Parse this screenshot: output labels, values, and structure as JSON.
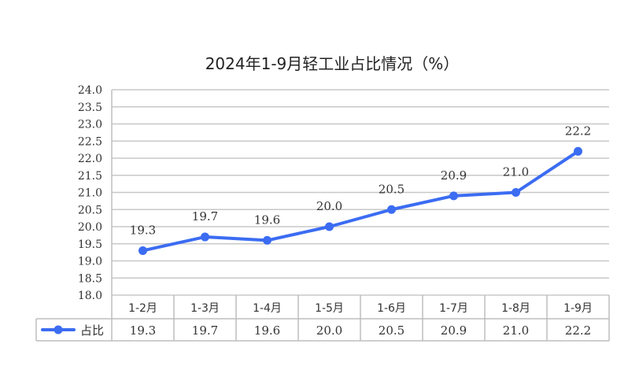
{
  "chart_data": {
    "type": "line",
    "title": "2024年1-9月轻工业占比情况（%）",
    "categories": [
      "1-2月",
      "1-3月",
      "1-4月",
      "1-5月",
      "1-6月",
      "1-7月",
      "1-8月",
      "1-9月"
    ],
    "series": [
      {
        "name": "占比",
        "values": [
          19.3,
          19.7,
          19.6,
          20.0,
          20.5,
          20.9,
          21.0,
          22.2
        ],
        "labels": [
          "19.3",
          "19.7",
          "19.6",
          "20.0",
          "20.5",
          "20.9",
          "21.0",
          "22.2"
        ],
        "color": "#3b6cf2"
      }
    ],
    "ylim": [
      18.0,
      24.0
    ],
    "yticks": [
      "18.0",
      "18.5",
      "19.0",
      "19.5",
      "20.0",
      "20.5",
      "21.0",
      "21.5",
      "22.0",
      "22.5",
      "23.0",
      "23.5",
      "24.0"
    ],
    "grid": true,
    "data_table": true,
    "legend": "data-table-left"
  }
}
